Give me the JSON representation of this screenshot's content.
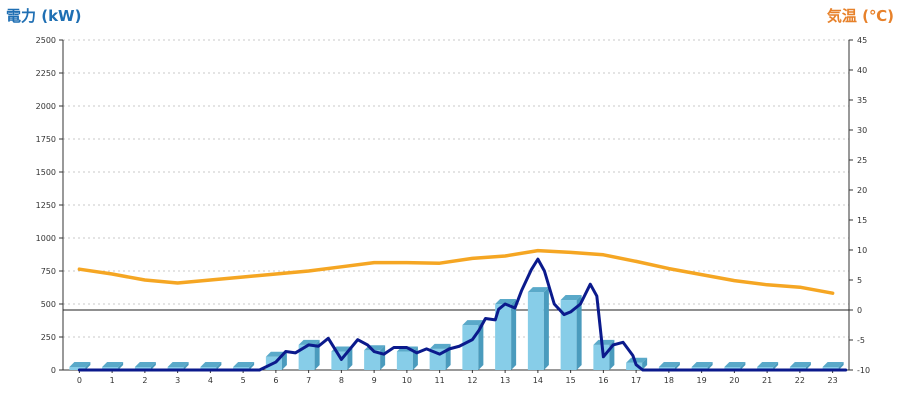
{
  "chart_data": {
    "type": "bar+line",
    "left_axis": {
      "label": "電力 (kW)",
      "range": [
        0,
        2500
      ],
      "ticks": [
        0,
        250,
        500,
        750,
        1000,
        1250,
        1500,
        1750,
        2000,
        2250,
        2500
      ]
    },
    "right_axis": {
      "label": "気温 (℃)",
      "range": [
        -10,
        45
      ],
      "ticks": [
        -10,
        -5,
        0,
        5,
        10,
        15,
        20,
        25,
        30,
        35,
        40,
        45
      ]
    },
    "categories": [
      "0",
      "1",
      "2",
      "3",
      "4",
      "5",
      "6",
      "7",
      "8",
      "9",
      "10",
      "11",
      "12",
      "13",
      "14",
      "15",
      "16",
      "17",
      "18",
      "19",
      "20",
      "21",
      "22",
      "23"
    ],
    "grid": true,
    "reference_line": {
      "axis": "right",
      "value": 0
    },
    "series": [
      {
        "type": "bar",
        "axis": "left",
        "color": "#87cde8",
        "values": [
          0,
          0,
          0,
          0,
          0,
          0,
          100,
          190,
          140,
          150,
          140,
          160,
          340,
          500,
          590,
          530,
          190,
          55,
          0,
          0,
          0,
          0,
          0,
          0
        ]
      },
      {
        "type": "line",
        "axis": "left",
        "color": "#0b1a8c",
        "x": [
          0,
          5.5,
          6,
          6.3,
          6.6,
          7,
          7.3,
          7.6,
          8,
          8.5,
          8.8,
          9,
          9.3,
          9.6,
          10,
          10.3,
          10.6,
          11,
          11.3,
          11.6,
          12,
          12.2,
          12.4,
          12.7,
          12.8,
          13,
          13.3,
          13.5,
          13.8,
          14,
          14.2,
          14.5,
          14.8,
          15,
          15.3,
          15.6,
          15.8,
          16,
          16.3,
          16.6,
          16.9,
          17,
          17.2,
          23.4
        ],
        "y": [
          0,
          0,
          60,
          140,
          130,
          190,
          180,
          240,
          80,
          230,
          190,
          140,
          120,
          170,
          170,
          130,
          160,
          120,
          160,
          180,
          230,
          300,
          390,
          380,
          460,
          500,
          470,
          600,
          760,
          840,
          750,
          500,
          420,
          440,
          500,
          650,
          560,
          100,
          190,
          210,
          110,
          40,
          0,
          0
        ]
      },
      {
        "type": "line",
        "axis": "right",
        "color": "#f5a623",
        "values": [
          6.8,
          6.0,
          5.0,
          4.5,
          5.0,
          5.5,
          6.0,
          6.5,
          7.2,
          7.9,
          7.9,
          7.8,
          8.6,
          9.0,
          9.9,
          9.6,
          9.2,
          8.1,
          6.9,
          5.9,
          4.9,
          4.2,
          3.8,
          2.8
        ]
      }
    ]
  }
}
